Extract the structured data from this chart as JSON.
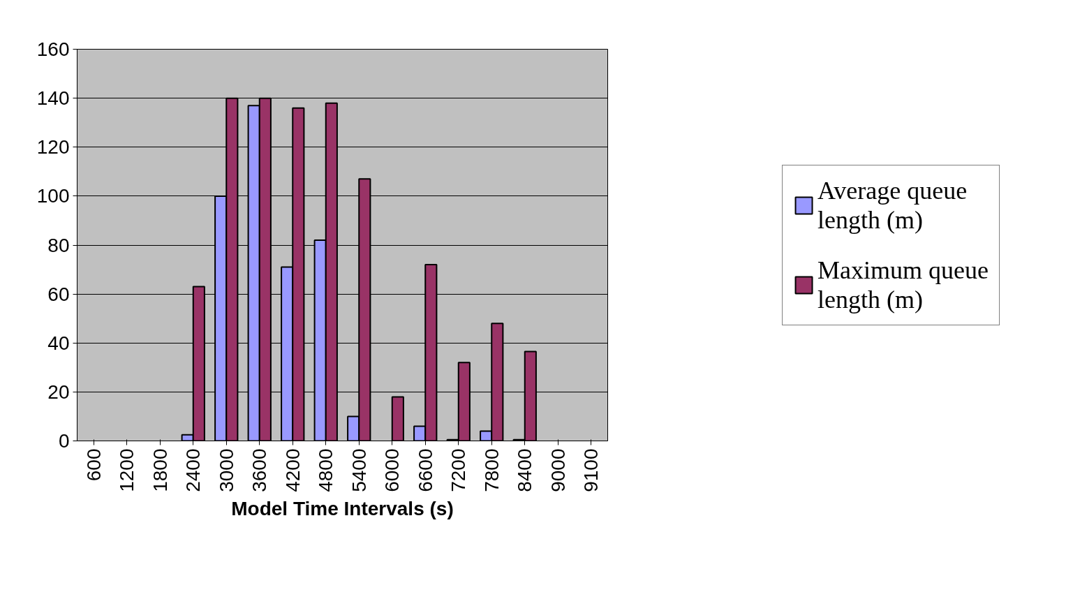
{
  "chart_data": {
    "type": "bar",
    "xlabel": "Model Time Intervals (s)",
    "categories": [
      "600",
      "1200",
      "1800",
      "2400",
      "3000",
      "3600",
      "4200",
      "4800",
      "5400",
      "6000",
      "6600",
      "7200",
      "7800",
      "8400",
      "9000",
      "9100"
    ],
    "series": [
      {
        "name": "Average queue length (m)",
        "color": "#9999ff",
        "values": [
          0,
          0,
          0,
          2.5,
          100,
          137,
          71,
          82,
          10,
          0,
          6,
          0.5,
          4,
          0.5,
          0,
          0
        ]
      },
      {
        "name": "Maximum queue length (m)",
        "color": "#993366",
        "values": [
          0,
          0,
          0,
          63,
          140,
          140,
          136,
          138,
          107,
          18,
          72,
          32,
          48,
          36.5,
          0,
          0
        ]
      }
    ],
    "ylim": [
      0,
      160
    ],
    "yticks": [
      0,
      20,
      40,
      60,
      80,
      100,
      120,
      140,
      160
    ],
    "grid": "y",
    "legend": "right"
  }
}
